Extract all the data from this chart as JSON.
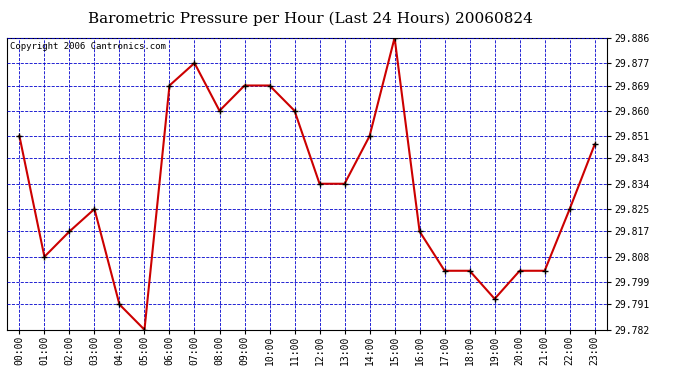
{
  "title": "Barometric Pressure per Hour (Last 24 Hours) 20060824",
  "copyright": "Copyright 2006 Cantronics.com",
  "x_labels": [
    "00:00",
    "01:00",
    "02:00",
    "03:00",
    "04:00",
    "05:00",
    "06:00",
    "07:00",
    "08:00",
    "09:00",
    "10:00",
    "11:00",
    "12:00",
    "13:00",
    "14:00",
    "15:00",
    "16:00",
    "17:00",
    "18:00",
    "19:00",
    "20:00",
    "21:00",
    "22:00",
    "23:00"
  ],
  "y_values": [
    29.851,
    29.808,
    29.817,
    29.825,
    29.791,
    29.782,
    29.869,
    29.877,
    29.86,
    29.869,
    29.869,
    29.86,
    29.834,
    29.834,
    29.851,
    29.886,
    29.817,
    29.803,
    29.803,
    29.793,
    29.803,
    29.803,
    29.825,
    29.848
  ],
  "ylim_min": 29.782,
  "ylim_max": 29.886,
  "y_ticks": [
    29.782,
    29.791,
    29.799,
    29.808,
    29.817,
    29.825,
    29.834,
    29.843,
    29.851,
    29.86,
    29.869,
    29.877,
    29.886
  ],
  "line_color": "#cc0000",
  "marker": "+",
  "marker_size": 5,
  "marker_color": "black",
  "background_color": "white",
  "plot_bg_color": "white",
  "grid_color": "#0000cc",
  "title_fontsize": 11,
  "tick_fontsize": 7,
  "copyright_fontsize": 6.5,
  "fig_width": 6.9,
  "fig_height": 3.75,
  "fig_dpi": 100
}
